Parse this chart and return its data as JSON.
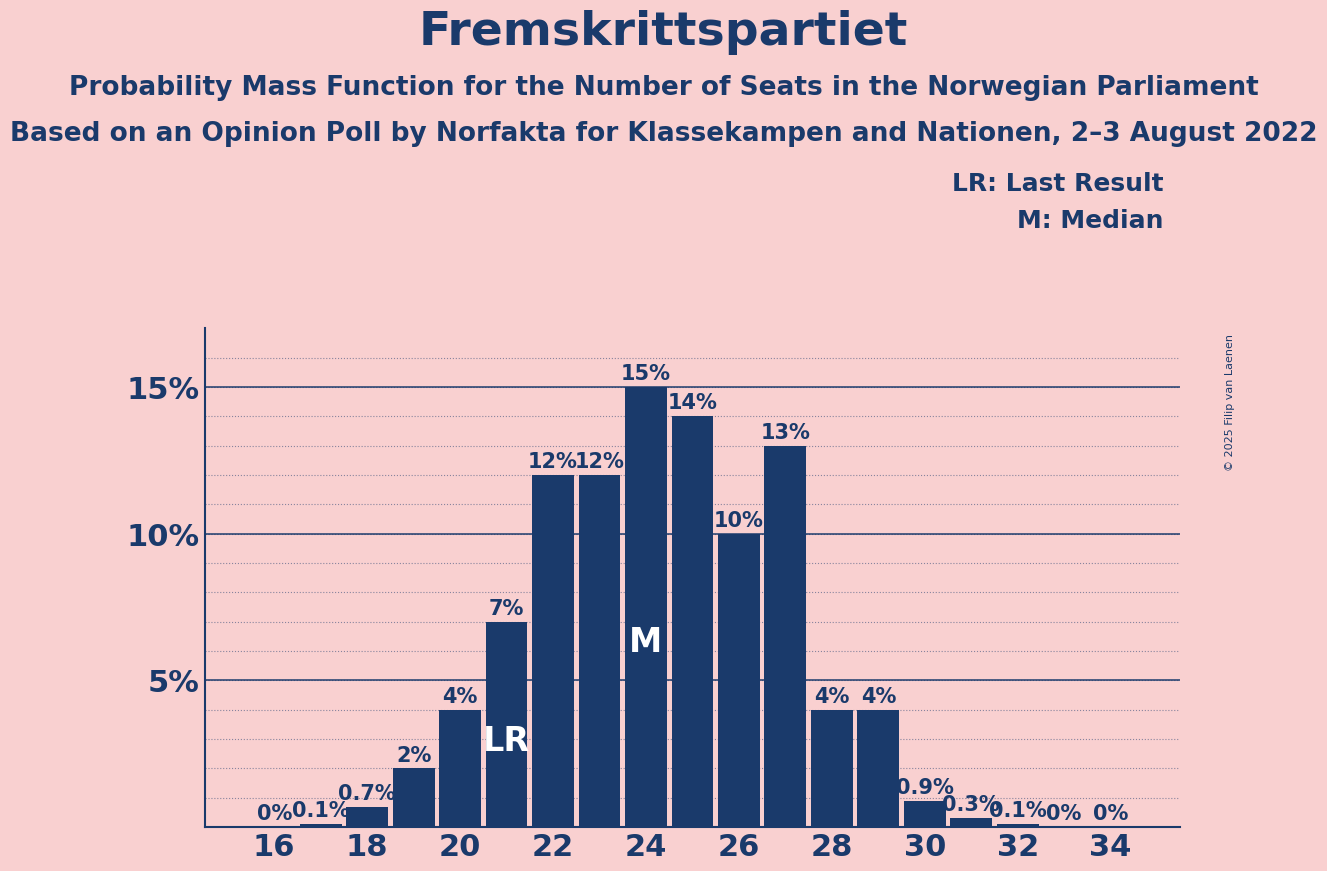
{
  "title": "Fremskrittspartiet",
  "subtitle1": "Probability Mass Function for the Number of Seats in the Norwegian Parliament",
  "subtitle2": "Based on an Opinion Poll by Norfakta for Klassekampen and Nationen, 2–3 August 2022",
  "copyright": "© 2025 Filip van Laenen",
  "seats": [
    16,
    17,
    18,
    19,
    20,
    21,
    22,
    23,
    24,
    25,
    26,
    27,
    28,
    29,
    30,
    31,
    32,
    33,
    34
  ],
  "probabilities": [
    0.0,
    0.1,
    0.7,
    2.0,
    4.0,
    7.0,
    12.0,
    12.0,
    15.0,
    14.0,
    10.0,
    13.0,
    4.0,
    4.0,
    0.9,
    0.3,
    0.1,
    0.0,
    0.0
  ],
  "bar_color": "#1a3a6b",
  "background_color": "#f9d0d0",
  "text_color": "#1a3a6b",
  "LR_seat": 21,
  "M_seat": 24,
  "ylim": [
    0,
    17
  ],
  "title_fontsize": 34,
  "subtitle_fontsize": 19,
  "axis_tick_fontsize": 22,
  "bar_label_fontsize": 15,
  "legend_fontsize": 18,
  "marker_fontsize": 24
}
